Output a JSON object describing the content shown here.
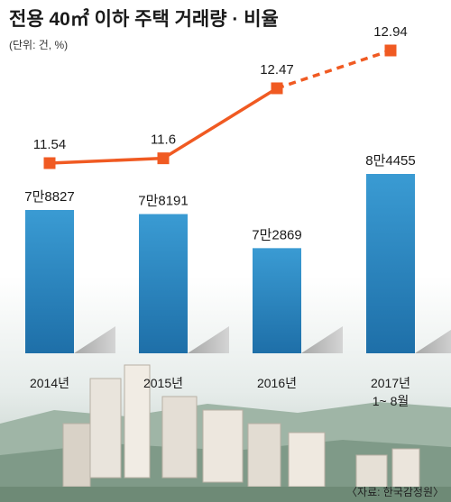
{
  "colors": {
    "bar_top": "#3a9bd3",
    "bar_bottom": "#1e6fa8",
    "line": "#f05a22",
    "marker": "#f05a22"
  },
  "chart_data": {
    "type": "bar",
    "title": "전용 40㎡ 이하 주택 거래량 · 비율",
    "subtitle": "(단위: 건, %)",
    "source": "〈자료: 한국감정원〉",
    "categories": [
      {
        "line1": "2014년",
        "line2": ""
      },
      {
        "line1": "2015년",
        "line2": ""
      },
      {
        "line1": "2016년",
        "line2": ""
      },
      {
        "line1": "2017년",
        "line2": "1~ 8월"
      }
    ],
    "series": [
      {
        "values": [
          78827,
          78191,
          72869,
          84455
        ],
        "labels": [
          "7만8827",
          "7만8191",
          "7만2869",
          "8만4455"
        ]
      },
      {
        "values": [
          11.54,
          11.6,
          12.47,
          12.94
        ],
        "labels": [
          "11.54",
          "11.6",
          "12.47",
          "12.94"
        ]
      }
    ],
    "dashed_last_segment": true
  }
}
